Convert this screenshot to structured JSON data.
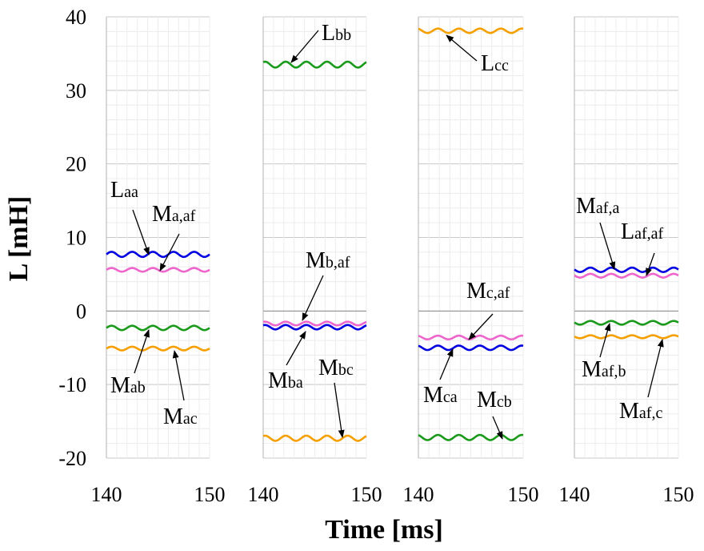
{
  "chart_data": {
    "type": "line",
    "xlabel": "Time [ms]",
    "ylabel": "L [mH]",
    "ylim": [
      -20,
      40
    ],
    "y_ticks": [
      "40",
      "30",
      "20",
      "10",
      "0",
      "-10",
      "-20"
    ],
    "xlim": [
      140,
      150
    ],
    "grid": true,
    "panels": [
      {
        "x_ticks": [
          "140",
          "150"
        ],
        "series": [
          {
            "name": "Laa",
            "color": "#0000e0",
            "mean": 7.7,
            "amplitude": 0.35,
            "cycles": 5
          },
          {
            "name": "Ma,af",
            "color": "#ee66cc",
            "mean": 5.6,
            "amplitude": 0.25,
            "cycles": 5
          },
          {
            "name": "Mab",
            "color": "#1a9a1a",
            "mean": -2.3,
            "amplitude": 0.3,
            "cycles": 5
          },
          {
            "name": "Mac",
            "color": "#f5a000",
            "mean": -5.1,
            "amplitude": 0.25,
            "cycles": 5
          }
        ],
        "annotations": [
          {
            "main": "L",
            "sub": "aa"
          },
          {
            "main": "M",
            "sub": "a,af"
          },
          {
            "main": "M",
            "sub": "ab"
          },
          {
            "main": "M",
            "sub": "ac"
          }
        ]
      },
      {
        "x_ticks": [
          "140",
          "150"
        ],
        "series": [
          {
            "name": "Lbb",
            "color": "#1a9a1a",
            "mean": 33.5,
            "amplitude": 0.4,
            "cycles": 5
          },
          {
            "name": "Mb,af",
            "color": "#ee66cc",
            "mean": -1.7,
            "amplitude": 0.25,
            "cycles": 5
          },
          {
            "name": "Mba",
            "color": "#0000e0",
            "mean": -2.2,
            "amplitude": 0.3,
            "cycles": 5
          },
          {
            "name": "Mbc",
            "color": "#f5a000",
            "mean": -17.3,
            "amplitude": 0.35,
            "cycles": 5
          }
        ],
        "annotations": [
          {
            "main": "L",
            "sub": "bb"
          },
          {
            "main": "M",
            "sub": "b,af"
          },
          {
            "main": "M",
            "sub": "ba"
          },
          {
            "main": "M",
            "sub": "bc"
          }
        ]
      },
      {
        "x_ticks": [
          "140",
          "150"
        ],
        "series": [
          {
            "name": "Lcc",
            "color": "#f5a000",
            "mean": 38.1,
            "amplitude": 0.3,
            "cycles": 5
          },
          {
            "name": "Mc,af",
            "color": "#ee66cc",
            "mean": -3.6,
            "amplitude": 0.25,
            "cycles": 5
          },
          {
            "name": "Mca",
            "color": "#0000e0",
            "mean": -5.0,
            "amplitude": 0.3,
            "cycles": 5
          },
          {
            "name": "Mcb",
            "color": "#1a9a1a",
            "mean": -17.2,
            "amplitude": 0.35,
            "cycles": 5
          }
        ],
        "annotations": [
          {
            "main": "L",
            "sub": "cc"
          },
          {
            "main": "M",
            "sub": "c,af"
          },
          {
            "main": "M",
            "sub": "ca"
          },
          {
            "main": "M",
            "sub": "cb"
          }
        ]
      },
      {
        "x_ticks": [
          "140",
          "150"
        ],
        "series": [
          {
            "name": "Maf,a",
            "color": "#0000e0",
            "mean": 5.6,
            "amplitude": 0.3,
            "cycles": 5
          },
          {
            "name": "Laf,af",
            "color": "#ee66cc",
            "mean": 4.8,
            "amplitude": 0.25,
            "cycles": 5
          },
          {
            "name": "Maf,b",
            "color": "#1a9a1a",
            "mean": -1.6,
            "amplitude": 0.25,
            "cycles": 5
          },
          {
            "name": "Maf,c",
            "color": "#f5a000",
            "mean": -3.5,
            "amplitude": 0.2,
            "cycles": 5
          }
        ],
        "annotations": [
          {
            "main": "M",
            "sub": "af,a"
          },
          {
            "main": "L",
            "sub": "af,af"
          },
          {
            "main": "M",
            "sub": "af,b"
          },
          {
            "main": "M",
            "sub": "af,c"
          }
        ]
      }
    ]
  }
}
